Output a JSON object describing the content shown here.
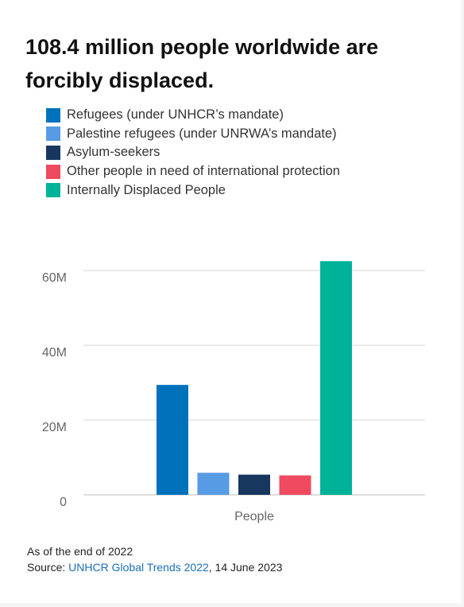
{
  "title": "108.4 million people worldwide are forcibly displaced.",
  "chart_data": {
    "type": "bar",
    "title": "108.4 million people worldwide are forcibly displaced.",
    "xlabel": "",
    "ylabel": "",
    "categories": [
      "People"
    ],
    "ylim": [
      0,
      62.5
    ],
    "y_ticks": [
      {
        "value": 0,
        "label": "0"
      },
      {
        "value": 20,
        "label": "20M"
      },
      {
        "value": 40,
        "label": "40M"
      },
      {
        "value": 60,
        "label": "60M"
      }
    ],
    "grid": true,
    "legend_position": "top-left",
    "series": [
      {
        "name": "Refugees (under UNHCR’s mandate)",
        "values": [
          29.4
        ],
        "color": "#0072bc"
      },
      {
        "name": "Palestine refugees (under UNRWA’s mandate)",
        "values": [
          5.9
        ],
        "color": "#589be5"
      },
      {
        "name": "Asylum-seekers",
        "values": [
          5.4
        ],
        "color": "#18375f"
      },
      {
        "name": "Other people in need of international protection",
        "values": [
          5.2
        ],
        "color": "#ef4a60"
      },
      {
        "name": "Internally Displaced People",
        "values": [
          62.5
        ],
        "color": "#00b398"
      }
    ]
  },
  "footer": {
    "note": "As of the end of 2022",
    "source_prefix": "Source: ",
    "source_link": "UNHCR Global Trends 2022",
    "source_suffix": ", 14 June 2023"
  }
}
